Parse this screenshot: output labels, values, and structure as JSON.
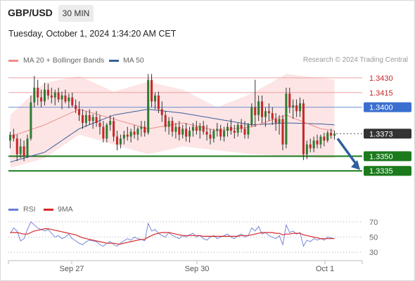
{
  "header": {
    "symbol": "GBP/USD",
    "timeframe": "30 MIN",
    "datetime": "Tuesday, October 1, 2024 1:34:20 AM CET"
  },
  "legend": {
    "ma20_label": "MA 20 + Bollinger Bands",
    "ma50_label": "MA 50",
    "credit": "Research © 2024 Trading Central"
  },
  "rsi_legend": {
    "rsi_label": "RSI",
    "ma_label": "9MA"
  },
  "colors": {
    "ma20": "#f08c8c",
    "ma50": "#3a5f9a",
    "bands_fill": "#fde2e2",
    "bull_candle": "#2e7d32",
    "bear_candle": "#c62828",
    "resistance": "#f0a0a0",
    "pivot": "#6b8fd6",
    "support": "#1b7a1b",
    "current_price_bg": "#333333",
    "forecast_arrow": "#2f5f9e",
    "rsi_line": "#6b7bd6",
    "rsi_ma": "#d62828"
  },
  "chart_data": [
    {
      "type": "candlestick",
      "title": "GBP/USD 30 MIN",
      "ylim": [
        1.3305,
        1.3445
      ],
      "x_ticks": [
        "Sep 27",
        "Sep 30",
        "Oct 1"
      ],
      "candles": [
        [
          1.3366,
          1.3375,
          1.3358,
          1.3372
        ],
        [
          1.3372,
          1.3378,
          1.3365,
          1.3368
        ],
        [
          1.3368,
          1.3372,
          1.3345,
          1.3352
        ],
        [
          1.3352,
          1.3368,
          1.3348,
          1.336
        ],
        [
          1.336,
          1.3366,
          1.3345,
          1.335
        ],
        [
          1.335,
          1.3372,
          1.3348,
          1.3368
        ],
        [
          1.3368,
          1.3412,
          1.3366,
          1.3405
        ],
        [
          1.3405,
          1.3432,
          1.34,
          1.342
        ],
        [
          1.342,
          1.3428,
          1.3402,
          1.341
        ],
        [
          1.341,
          1.3418,
          1.34,
          1.3406
        ],
        [
          1.3406,
          1.3425,
          1.3402,
          1.3418
        ],
        [
          1.3418,
          1.3424,
          1.3408,
          1.3412
        ],
        [
          1.3412,
          1.342,
          1.3404,
          1.341
        ],
        [
          1.341,
          1.3418,
          1.3402,
          1.3415
        ],
        [
          1.3415,
          1.342,
          1.3405,
          1.3408
        ],
        [
          1.3408,
          1.3416,
          1.3398,
          1.3412
        ],
        [
          1.3412,
          1.3418,
          1.3404,
          1.3406
        ],
        [
          1.3406,
          1.3414,
          1.3399,
          1.341
        ],
        [
          1.341,
          1.3415,
          1.34,
          1.3402
        ],
        [
          1.3402,
          1.3408,
          1.3394,
          1.3398
        ],
        [
          1.3398,
          1.3406,
          1.3386,
          1.3392
        ],
        [
          1.3392,
          1.3398,
          1.3378,
          1.3384
        ],
        [
          1.3384,
          1.3396,
          1.338,
          1.3392
        ],
        [
          1.3392,
          1.3398,
          1.3382,
          1.3386
        ],
        [
          1.3386,
          1.3393,
          1.3378,
          1.339
        ],
        [
          1.339,
          1.3396,
          1.338,
          1.3384
        ],
        [
          1.3384,
          1.3392,
          1.3372,
          1.338
        ],
        [
          1.338,
          1.3386,
          1.3364,
          1.3368
        ],
        [
          1.3368,
          1.3384,
          1.3364,
          1.3382
        ],
        [
          1.3382,
          1.3392,
          1.3376,
          1.3386
        ],
        [
          1.3386,
          1.339,
          1.3365,
          1.337
        ],
        [
          1.337,
          1.3376,
          1.3356,
          1.3362
        ],
        [
          1.3362,
          1.3372,
          1.3358,
          1.3368
        ],
        [
          1.3368,
          1.3376,
          1.3362,
          1.3372
        ],
        [
          1.3372,
          1.338,
          1.3366,
          1.337
        ],
        [
          1.337,
          1.3378,
          1.3364,
          1.3375
        ],
        [
          1.3375,
          1.3382,
          1.3368,
          1.3372
        ],
        [
          1.3372,
          1.338,
          1.3366,
          1.3378
        ],
        [
          1.3378,
          1.3386,
          1.337,
          1.338
        ],
        [
          1.338,
          1.3386,
          1.337,
          1.3374
        ],
        [
          1.3374,
          1.3434,
          1.3372,
          1.3428
        ],
        [
          1.3428,
          1.3434,
          1.34,
          1.3406
        ],
        [
          1.3406,
          1.3415,
          1.3398,
          1.3412
        ],
        [
          1.3412,
          1.3416,
          1.3394,
          1.3398
        ],
        [
          1.3398,
          1.3406,
          1.3385,
          1.3392
        ],
        [
          1.3392,
          1.3396,
          1.3375,
          1.338
        ],
        [
          1.338,
          1.339,
          1.3372,
          1.3386
        ],
        [
          1.3386,
          1.339,
          1.337,
          1.3375
        ],
        [
          1.3375,
          1.3384,
          1.3368,
          1.338
        ],
        [
          1.338,
          1.3386,
          1.3366,
          1.3372
        ],
        [
          1.3372,
          1.3382,
          1.3368,
          1.3378
        ],
        [
          1.3378,
          1.3384,
          1.3365,
          1.337
        ],
        [
          1.337,
          1.338,
          1.3364,
          1.3376
        ],
        [
          1.3376,
          1.3384,
          1.337,
          1.338
        ],
        [
          1.338,
          1.3386,
          1.3372,
          1.3376
        ],
        [
          1.3376,
          1.3384,
          1.3368,
          1.3381
        ],
        [
          1.3381,
          1.3386,
          1.3372,
          1.3375
        ],
        [
          1.3375,
          1.3382,
          1.3366,
          1.3372
        ],
        [
          1.3372,
          1.3378,
          1.3362,
          1.3368
        ],
        [
          1.3368,
          1.3378,
          1.3364,
          1.3376
        ],
        [
          1.3376,
          1.3384,
          1.337,
          1.3378
        ],
        [
          1.3378,
          1.3382,
          1.3366,
          1.337
        ],
        [
          1.337,
          1.338,
          1.3365,
          1.3376
        ],
        [
          1.3376,
          1.3384,
          1.337,
          1.338
        ],
        [
          1.338,
          1.3388,
          1.3372,
          1.3376
        ],
        [
          1.3376,
          1.3382,
          1.3368,
          1.3374
        ],
        [
          1.3374,
          1.3384,
          1.337,
          1.3382
        ],
        [
          1.3382,
          1.3388,
          1.3374,
          1.3378
        ],
        [
          1.3378,
          1.3386,
          1.3368,
          1.3372
        ],
        [
          1.3372,
          1.3384,
          1.3368,
          1.3382
        ],
        [
          1.3382,
          1.3404,
          1.338,
          1.34
        ],
        [
          1.34,
          1.3428,
          1.338,
          1.3392
        ],
        [
          1.3392,
          1.3412,
          1.3386,
          1.3406
        ],
        [
          1.3406,
          1.3412,
          1.3384,
          1.339
        ],
        [
          1.339,
          1.34,
          1.338,
          1.3396
        ],
        [
          1.3396,
          1.3404,
          1.3386,
          1.3394
        ],
        [
          1.3394,
          1.34,
          1.3382,
          1.3388
        ],
        [
          1.3388,
          1.3394,
          1.3376,
          1.3384
        ],
        [
          1.3384,
          1.3392,
          1.3372,
          1.3388
        ],
        [
          1.3388,
          1.3392,
          1.3356,
          1.3362
        ],
        [
          1.3362,
          1.342,
          1.3358,
          1.3414
        ],
        [
          1.3414,
          1.342,
          1.3394,
          1.34
        ],
        [
          1.34,
          1.3408,
          1.3388,
          1.3402
        ],
        [
          1.3402,
          1.3408,
          1.339,
          1.3396
        ],
        [
          1.3396,
          1.341,
          1.339,
          1.3404
        ],
        [
          1.3404,
          1.3408,
          1.3346,
          1.3352
        ],
        [
          1.3352,
          1.3366,
          1.3347,
          1.3362
        ],
        [
          1.3362,
          1.3368,
          1.3354,
          1.3358
        ],
        [
          1.3358,
          1.337,
          1.3354,
          1.3366
        ],
        [
          1.3366,
          1.3372,
          1.3358,
          1.3362
        ],
        [
          1.3362,
          1.3372,
          1.3358,
          1.337
        ],
        [
          1.337,
          1.3374,
          1.336,
          1.3366
        ],
        [
          1.3366,
          1.3376,
          1.3364,
          1.3374
        ],
        [
          1.3374,
          1.3378,
          1.3368,
          1.3371
        ],
        [
          1.3371,
          1.3376,
          1.3367,
          1.3373
        ]
      ],
      "ma20": [
        [
          0,
          1.337
        ],
        [
          10,
          1.3382
        ],
        [
          20,
          1.3398
        ],
        [
          30,
          1.3388
        ],
        [
          40,
          1.3378
        ],
        [
          50,
          1.3384
        ],
        [
          60,
          1.3376
        ],
        [
          70,
          1.338
        ],
        [
          80,
          1.3392
        ],
        [
          90,
          1.3378
        ],
        [
          94,
          1.3376
        ]
      ],
      "ma50": [
        [
          0,
          1.3344
        ],
        [
          10,
          1.3354
        ],
        [
          20,
          1.3378
        ],
        [
          30,
          1.3392
        ],
        [
          40,
          1.3398
        ],
        [
          50,
          1.3394
        ],
        [
          60,
          1.3388
        ],
        [
          70,
          1.3382
        ],
        [
          80,
          1.3384
        ],
        [
          90,
          1.3383
        ],
        [
          94,
          1.3382
        ]
      ],
      "bollinger_upper": [
        [
          0,
          1.3392
        ],
        [
          10,
          1.3425
        ],
        [
          20,
          1.3432
        ],
        [
          30,
          1.3416
        ],
        [
          40,
          1.3426
        ],
        [
          50,
          1.3418
        ],
        [
          60,
          1.34
        ],
        [
          70,
          1.3414
        ],
        [
          80,
          1.3434
        ],
        [
          90,
          1.343
        ],
        [
          94,
          1.3428
        ]
      ],
      "bollinger_lower": [
        [
          0,
          1.3338
        ],
        [
          10,
          1.3348
        ],
        [
          20,
          1.3372
        ],
        [
          30,
          1.3362
        ],
        [
          40,
          1.3352
        ],
        [
          50,
          1.336
        ],
        [
          60,
          1.3356
        ],
        [
          70,
          1.3352
        ],
        [
          80,
          1.335
        ],
        [
          90,
          1.3348
        ],
        [
          94,
          1.3348
        ]
      ],
      "levels": [
        {
          "value": 1.343,
          "label": "1.3430",
          "kind": "resistance"
        },
        {
          "value": 1.3415,
          "label": "1.3415",
          "kind": "resistance"
        },
        {
          "value": 1.34,
          "label": "1.3400",
          "kind": "pivot"
        },
        {
          "value": 1.3373,
          "label": "1.3373",
          "kind": "current"
        },
        {
          "value": 1.335,
          "label": "1.3350",
          "kind": "support"
        },
        {
          "value": 1.3335,
          "label": "1.3335",
          "kind": "support"
        }
      ],
      "forecast_arrow": {
        "from": 1.3368,
        "to": 1.3336
      }
    },
    {
      "type": "line",
      "title": "RSI",
      "ylim": [
        20,
        80
      ],
      "y_ticks": [
        70,
        50,
        30
      ],
      "series": [
        {
          "name": "RSI",
          "values": [
            55,
            62,
            58,
            45,
            48,
            60,
            70,
            66,
            62,
            60,
            58,
            60,
            55,
            50,
            52,
            48,
            50,
            54,
            48,
            45,
            42,
            40,
            44,
            46,
            45,
            44,
            40,
            38,
            42,
            44,
            40,
            38,
            42,
            45,
            48,
            46,
            50,
            48,
            47,
            45,
            68,
            58,
            60,
            55,
            52,
            50,
            56,
            52,
            50,
            48,
            52,
            50,
            53,
            55,
            50,
            52,
            48,
            46,
            50,
            52,
            48,
            50,
            52,
            54,
            50,
            48,
            52,
            54,
            50,
            52,
            62,
            58,
            64,
            54,
            56,
            52,
            50,
            48,
            52,
            40,
            66,
            56,
            58,
            54,
            56,
            38,
            46,
            44,
            48,
            46,
            48,
            46,
            50,
            49,
            48
          ]
        },
        {
          "name": "9MA",
          "values": [
            56,
            56,
            56,
            55,
            54,
            54,
            56,
            58,
            59,
            60,
            61,
            61,
            60,
            59,
            58,
            57,
            56,
            55,
            54,
            53,
            51,
            49,
            48,
            47,
            46,
            45,
            44,
            43,
            42,
            42,
            42,
            41,
            41,
            42,
            43,
            44,
            45,
            46,
            47,
            47,
            50,
            52,
            54,
            55,
            56,
            56,
            56,
            55,
            54,
            53,
            52,
            52,
            52,
            52,
            52,
            52,
            51,
            51,
            51,
            51,
            51,
            51,
            51,
            51,
            51,
            51,
            51,
            52,
            52,
            52,
            53,
            54,
            55,
            56,
            56,
            56,
            56,
            55,
            55,
            53,
            54,
            54,
            55,
            55,
            55,
            53,
            52,
            51,
            50,
            49,
            48,
            48,
            48,
            48,
            48
          ]
        }
      ],
      "x_ticks": [
        "Sep 27",
        "Sep 30",
        "Oct 1"
      ]
    }
  ]
}
